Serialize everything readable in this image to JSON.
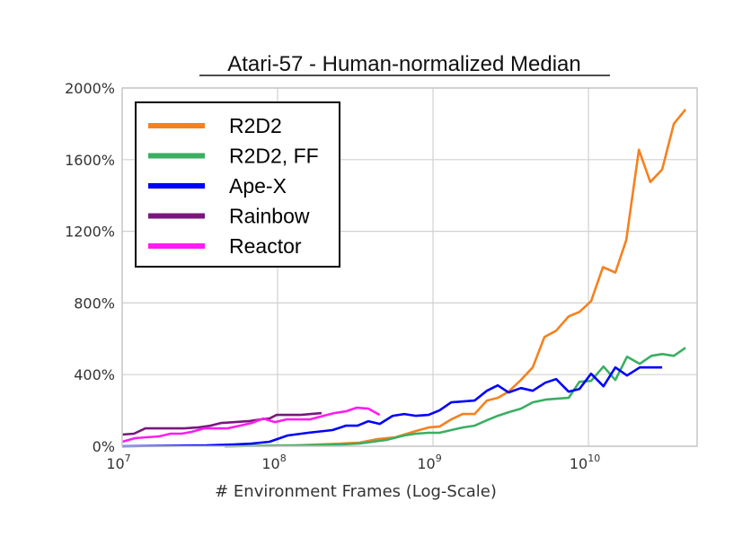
{
  "chart_data": {
    "type": "line",
    "title": "Atari-57 - Human-normalized Median",
    "xlabel": "# Environment Frames (Log-Scale)",
    "ylabel": "",
    "x_scale": "log",
    "xlim": [
      10000000.0,
      50000000000.0
    ],
    "ylim": [
      0,
      2000
    ],
    "x_ticks": [
      {
        "base": "10",
        "exp": "7"
      },
      {
        "base": "10",
        "exp": "8"
      },
      {
        "base": "10",
        "exp": "9"
      },
      {
        "base": "10",
        "exp": "10"
      }
    ],
    "x_tick_values": [
      10000000.0,
      100000000.0,
      1000000000.0,
      10000000000.0
    ],
    "y_ticks": [
      "0%",
      "400%",
      "800%",
      "1200%",
      "1600%",
      "2000%"
    ],
    "y_tick_values": [
      0,
      400,
      800,
      1200,
      1600,
      2000
    ],
    "grid": true,
    "legend_position": "top-left",
    "series": [
      {
        "name": "R2D2",
        "color": "#f5811f",
        "x": [
          45600000.0,
          132000000.0,
          257000000.0,
          336000000.0,
          438000000.0,
          572000000.0,
          653000000.0,
          776000000.0,
          935000000.0,
          1100000000.0,
          1310000000.0,
          1550000000.0,
          1850000000.0,
          2220000000.0,
          2610000000.0,
          3060000000.0,
          3680000000.0,
          4380000000.0,
          5210000000.0,
          6200000000.0,
          7460000000.0,
          8750000000.0,
          10400000000.0,
          12400000000.0,
          14900000000.0,
          17500000000.0,
          21100000000.0,
          25000000000.0,
          29800000000.0,
          35400000000.0,
          42100000000.0
        ],
        "y": [
          0,
          5,
          15,
          20,
          40,
          50,
          65,
          85,
          105,
          110,
          150,
          180,
          180,
          255,
          270,
          305,
          370,
          440,
          610,
          645,
          725,
          750,
          810,
          1000,
          970,
          1150,
          1655,
          1475,
          1545,
          1800,
          1880
        ]
      },
      {
        "name": "R2D2, FF",
        "color": "#3aaf62",
        "x": [
          45600000.0,
          132000000.0,
          257000000.0,
          336000000.0,
          500000000.0,
          653000000.0,
          776000000.0,
          935000000.0,
          1100000000.0,
          1310000000.0,
          1550000000.0,
          1850000000.0,
          2220000000.0,
          2610000000.0,
          3060000000.0,
          3680000000.0,
          4380000000.0,
          5280000000.0,
          6200000000.0,
          7460000000.0,
          8750000000.0,
          10400000000.0,
          12500000000.0,
          14900000000.0,
          17700000000.0,
          21400000000.0,
          25400000000.0,
          29800000000.0,
          35400000000.0,
          42100000000.0
        ],
        "y": [
          0,
          5,
          10,
          15,
          35,
          60,
          70,
          75,
          75,
          90,
          105,
          115,
          145,
          170,
          190,
          210,
          245,
          260,
          265,
          270,
          360,
          365,
          445,
          370,
          500,
          460,
          505,
          515,
          505,
          550
        ]
      },
      {
        "name": "Ape-X",
        "color": "#0000ff",
        "x": [
          10000000.0,
          34900000.0,
          52100000.0,
          68000000.0,
          88700000.0,
          116000000.0,
          157000000.0,
          225000000.0,
          275000000.0,
          327000000.0,
          384000000.0,
          454000000.0,
          550000000.0,
          653000000.0,
          776000000.0,
          935000000.0,
          1100000000.0,
          1310000000.0,
          1850000000.0,
          2220000000.0,
          2610000000.0,
          3060000000.0,
          3680000000.0,
          4380000000.0,
          5280000000.0,
          6200000000.0,
          7460000000.0,
          8750000000.0,
          10400000000.0,
          12500000000.0,
          14900000000.0,
          17700000000.0,
          21400000000.0,
          29800000000.0
        ],
        "y": [
          0,
          5,
          10,
          15,
          25,
          60,
          75,
          90,
          115,
          115,
          140,
          125,
          170,
          180,
          170,
          175,
          200,
          245,
          255,
          310,
          340,
          300,
          325,
          310,
          355,
          375,
          305,
          320,
          405,
          335,
          440,
          395,
          440,
          440
        ]
      },
      {
        "name": "Rainbow",
        "color": "#7a177c",
        "x": [
          10000000.0,
          11900000.0,
          14100000.0,
          17000000.0,
          20500000.0,
          25100000.0,
          30600000.0,
          36800000.0,
          43200000.0,
          53500000.0,
          64500000.0,
          77600000.0,
          88700000.0,
          98700000.0,
          116000000.0,
          141000000.0,
          192000000.0
        ],
        "y": [
          65,
          70,
          100,
          100,
          100,
          100,
          105,
          115,
          130,
          135,
          140,
          150,
          155,
          175,
          175,
          175,
          185
        ]
      },
      {
        "name": "Reactor",
        "color": "#ff1cf0",
        "x": [
          10000000.0,
          12100000.0,
          14300000.0,
          17300000.0,
          20500000.0,
          24100000.0,
          27900000.0,
          33600000.0,
          47400000.0,
          57100000.0,
          68000000.0,
          80800000.0,
          96100000.0,
          114000000.0,
          161000000.0,
          197000000.0,
          231000000.0,
          275000000.0,
          322000000.0,
          384000000.0,
          454000000.0
        ],
        "y": [
          25,
          45,
          50,
          55,
          70,
          70,
          80,
          100,
          100,
          115,
          130,
          155,
          135,
          150,
          150,
          170,
          185,
          195,
          215,
          210,
          175
        ]
      }
    ]
  }
}
